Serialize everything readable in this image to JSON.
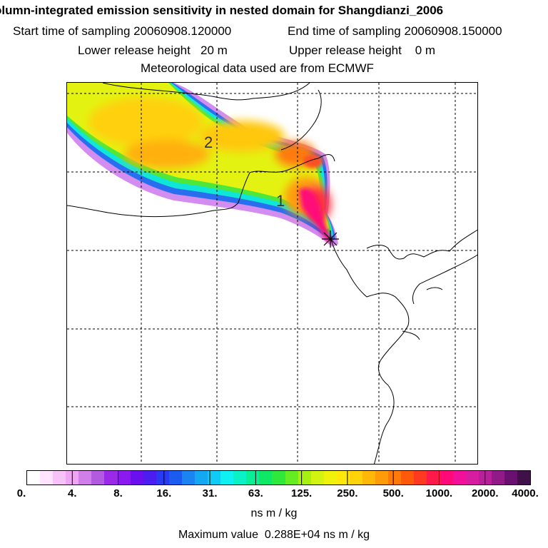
{
  "header": {
    "title": "olumn-integrated emission sensitivity in nested domain for Shangdianzi_2006",
    "start_label": "Start time of sampling",
    "start_value": "20060908.120000",
    "end_label": "End time of sampling",
    "end_value": "20060908.150000",
    "lower_label": "Lower release height",
    "lower_value": "20 m",
    "upper_label": "Upper release height",
    "upper_value": "0 m",
    "met_line": "Meteorological data used are from ECMWF"
  },
  "map": {
    "labels": [
      "1",
      "2"
    ]
  },
  "colorbar": {
    "ticks": [
      "0.",
      "4.",
      "8.",
      "16.",
      "31.",
      "63.",
      "125.",
      "250.",
      "500.",
      "1000.",
      "2000.",
      "4000."
    ],
    "colors": [
      "#ffffff",
      "#ffe3ff",
      "#f7c2f7",
      "#eea6f2",
      "#d07ee8",
      "#b25ae0",
      "#9a2ae8",
      "#8a1af0",
      "#6a10ef",
      "#4a1ef0",
      "#2a3af0",
      "#1a5cf0",
      "#1a84f0",
      "#14a8f2",
      "#10ccf4",
      "#0ef0f2",
      "#0cf0c6",
      "#0aee96",
      "#0fe864",
      "#30e83c",
      "#66ec22",
      "#a6f012",
      "#d2f410",
      "#f0f20c",
      "#ffe80c",
      "#ffd20a",
      "#ffb808",
      "#ff9a08",
      "#ff7a08",
      "#ff5a0a",
      "#ff3a20",
      "#ff1a4a",
      "#ff0a78",
      "#f0109a",
      "#d81ca2",
      "#b8209a",
      "#901a88",
      "#6a1070",
      "#401048"
    ],
    "units": "ns m / kg",
    "max_label": "Maximum value",
    "max_value": "0.288E+04 ns m / kg"
  }
}
